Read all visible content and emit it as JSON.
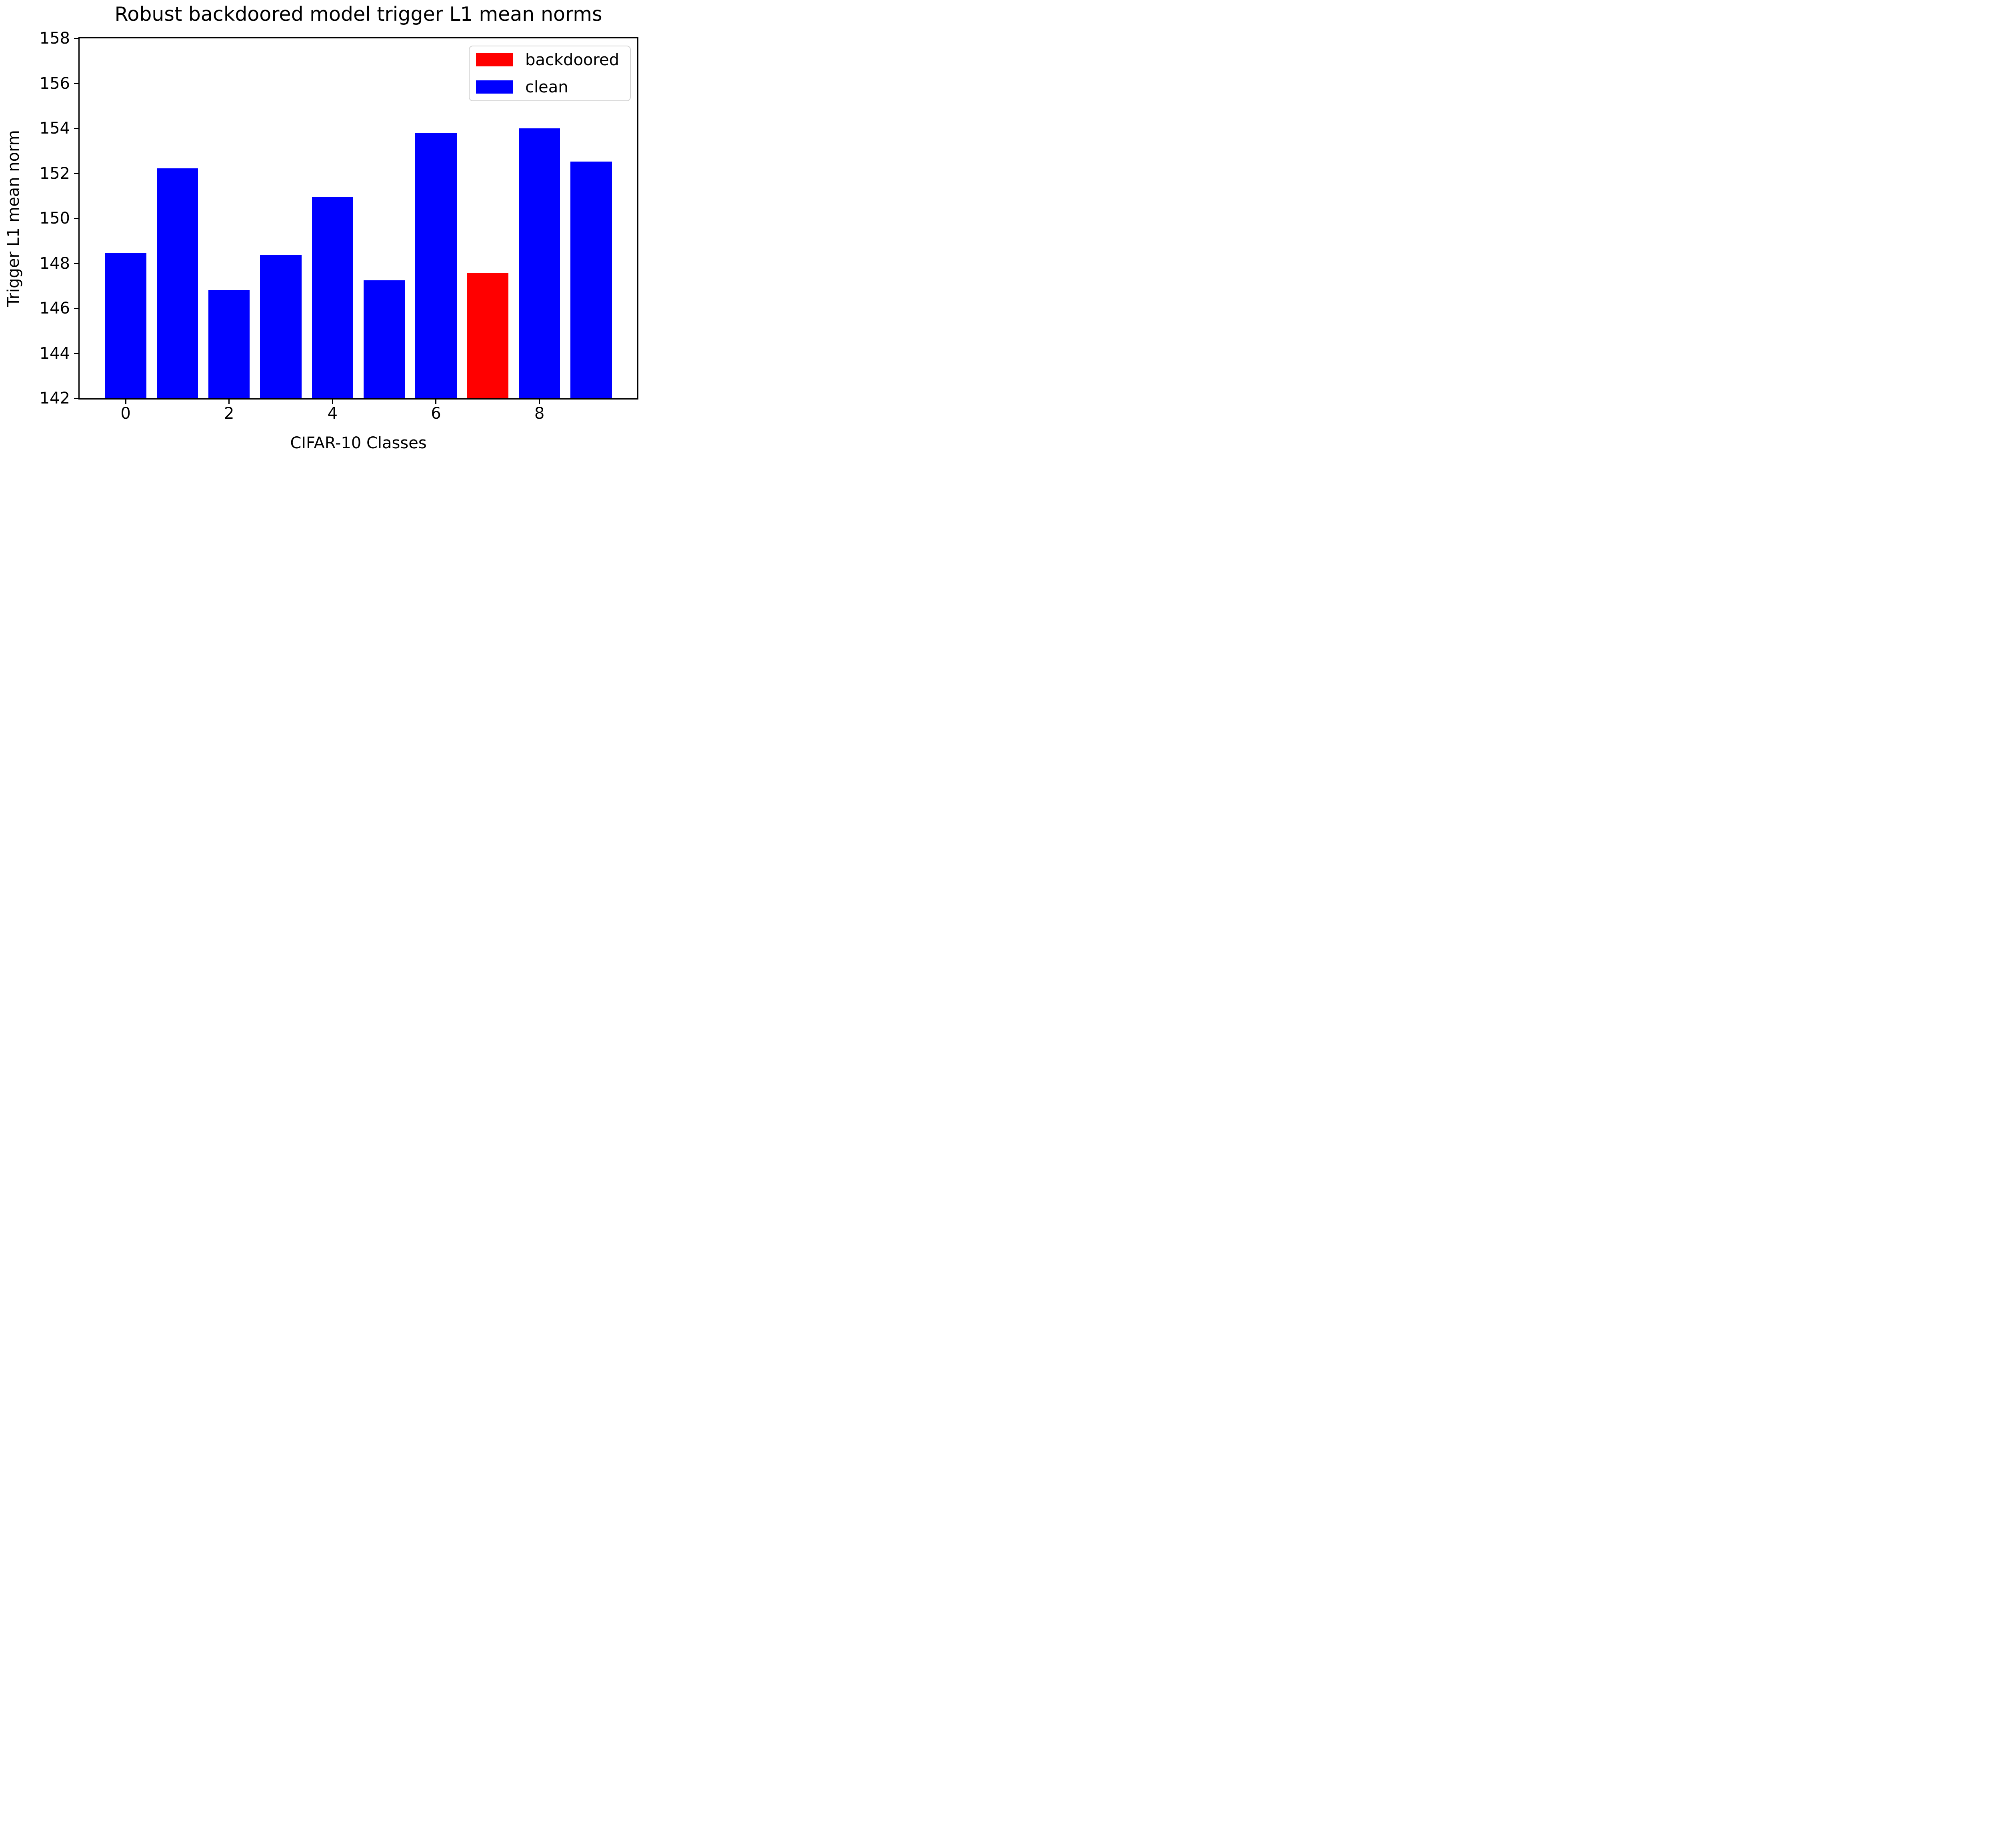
{
  "chart_data": {
    "type": "bar",
    "title": "Robust backdoored model trigger L1 mean norms",
    "xlabel": "CIFAR-10 Classes",
    "ylabel": "Trigger L1 mean norm",
    "categories": [
      0,
      1,
      2,
      3,
      4,
      5,
      6,
      7,
      8,
      9
    ],
    "values": [
      148.45,
      152.22,
      146.82,
      148.36,
      150.96,
      147.24,
      153.81,
      147.59,
      154.0,
      152.53
    ],
    "bar_colors": [
      "#0000ff",
      "#0000ff",
      "#0000ff",
      "#0000ff",
      "#0000ff",
      "#0000ff",
      "#0000ff",
      "#ff0000",
      "#0000ff",
      "#0000ff"
    ],
    "backdoored_class": 7,
    "bar_width": 0.8,
    "ylim": [
      142,
      158
    ],
    "xlim": [
      -0.89,
      9.89
    ],
    "yticks": [
      142,
      144,
      146,
      148,
      150,
      152,
      154,
      156,
      158
    ],
    "xticks": [
      0,
      2,
      4,
      6,
      8
    ],
    "grid": false,
    "axis_color": "#000000",
    "legend": {
      "position": "upper right",
      "entries": [
        {
          "label": "backdoored",
          "color": "#ff0000"
        },
        {
          "label": "clean",
          "color": "#0000ff"
        }
      ]
    }
  }
}
